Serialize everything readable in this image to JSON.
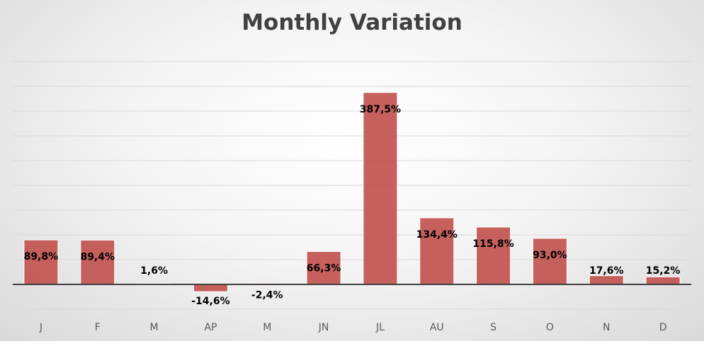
{
  "chart_data": {
    "type": "bar",
    "title": "Monthly Variation",
    "xlabel": "",
    "ylabel": "",
    "categories": [
      "J",
      "F",
      "M",
      "AP",
      "M",
      "JN",
      "JL",
      "AU",
      "S",
      "O",
      "N",
      "D"
    ],
    "values": [
      89.8,
      89.4,
      1.6,
      -14.6,
      -2.4,
      66.3,
      387.5,
      134.4,
      115.8,
      93.0,
      17.6,
      15.2
    ],
    "data_labels": [
      "89,8%",
      "89,4%",
      "1,6%",
      "-14,6%",
      "-2,4%",
      "66,3%",
      "387,5%",
      "134,4%",
      "115,8%",
      "93,0%",
      "17,6%",
      "15,2%"
    ],
    "ylim": [
      -50,
      450
    ],
    "y_gridline_step": 50,
    "y_tick_labels_visible": false,
    "grid": true,
    "legend": "none",
    "bar_color": "#c0504d",
    "bar_outline_color": "#ffffff"
  }
}
